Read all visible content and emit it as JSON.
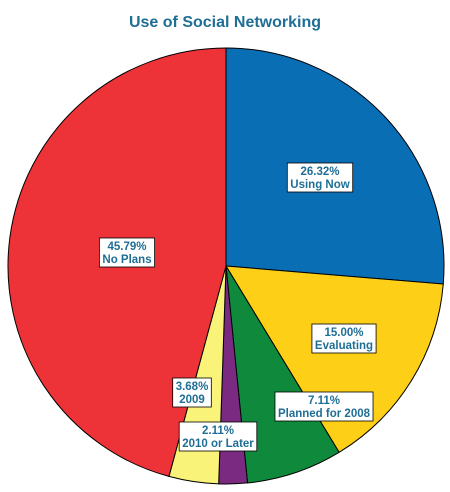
{
  "chart_data": {
    "type": "pie",
    "title": "Use of Social Networking",
    "slices": [
      {
        "label": "Using Now",
        "value": 26.32,
        "value_text": "26.32%",
        "color": "#0a6eb4"
      },
      {
        "label": "Evaluating",
        "value": 15.0,
        "value_text": "15.00%",
        "color": "#fdd017"
      },
      {
        "label": "Planned for 2008",
        "value": 7.11,
        "value_text": "7.11%",
        "color": "#0f8a3c"
      },
      {
        "label": "2010 or Later",
        "value": 2.11,
        "value_text": "2.11%",
        "color": "#7a2a80"
      },
      {
        "label": "2009",
        "value": 3.68,
        "value_text": "3.68%",
        "color": "#f9f37a"
      },
      {
        "label": "No Plans",
        "value": 45.79,
        "value_text": "45.79%",
        "color": "#ee3338"
      }
    ],
    "start_angle": "12 o'clock",
    "direction": "clockwise"
  }
}
